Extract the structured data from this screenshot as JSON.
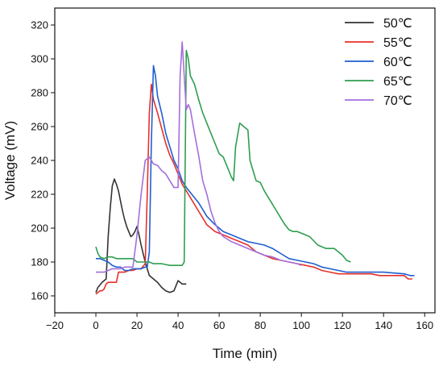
{
  "chart_data": {
    "type": "line",
    "title": "",
    "xlabel": "Time (min)",
    "ylabel": "Voltage (mV)",
    "xlim": [
      -20,
      165
    ],
    "ylim": [
      150,
      330
    ],
    "xticks": [
      -20,
      0,
      20,
      40,
      60,
      80,
      100,
      120,
      140,
      160
    ],
    "yticks": [
      160,
      180,
      200,
      220,
      240,
      260,
      280,
      300,
      320
    ],
    "xtick_labels": [
      "−20",
      "0",
      "20",
      "40",
      "60",
      "80",
      "100",
      "120",
      "140",
      "160"
    ],
    "ytick_labels": [
      "160",
      "180",
      "200",
      "220",
      "240",
      "260",
      "280",
      "300",
      "320"
    ],
    "grid": false,
    "legend_position": "top-right",
    "series": [
      {
        "name": "50℃",
        "color": "#333333",
        "points": [
          [
            0,
            162
          ],
          [
            1,
            165
          ],
          [
            3,
            168
          ],
          [
            5,
            170
          ],
          [
            6,
            195
          ],
          [
            7,
            212
          ],
          [
            8,
            225
          ],
          [
            9,
            229
          ],
          [
            10,
            226
          ],
          [
            11,
            222
          ],
          [
            12,
            216
          ],
          [
            13,
            210
          ],
          [
            14,
            205
          ],
          [
            15,
            201
          ],
          [
            16,
            198
          ],
          [
            17,
            195
          ],
          [
            18,
            196
          ],
          [
            19,
            198
          ],
          [
            20,
            201
          ],
          [
            21,
            196
          ],
          [
            22,
            190
          ],
          [
            23,
            185
          ],
          [
            24,
            180
          ],
          [
            25,
            176
          ],
          [
            26,
            172
          ],
          [
            28,
            170
          ],
          [
            30,
            168
          ],
          [
            32,
            165
          ],
          [
            34,
            163
          ],
          [
            36,
            162
          ],
          [
            38,
            163
          ],
          [
            40,
            169
          ],
          [
            42,
            167
          ],
          [
            44,
            167
          ]
        ]
      },
      {
        "name": "55℃",
        "color": "#e8302a",
        "points": [
          [
            0,
            161
          ],
          [
            1,
            162
          ],
          [
            2,
            163
          ],
          [
            3,
            163
          ],
          [
            4,
            164
          ],
          [
            5,
            167
          ],
          [
            6,
            168
          ],
          [
            8,
            168
          ],
          [
            10,
            168
          ],
          [
            11,
            174
          ],
          [
            12,
            174
          ],
          [
            14,
            174
          ],
          [
            16,
            175
          ],
          [
            18,
            175
          ],
          [
            20,
            176
          ],
          [
            22,
            176
          ],
          [
            24,
            179
          ],
          [
            25,
            220
          ],
          [
            26,
            268
          ],
          [
            27,
            285
          ],
          [
            28,
            276
          ],
          [
            30,
            268
          ],
          [
            32,
            259
          ],
          [
            34,
            250
          ],
          [
            36,
            243
          ],
          [
            38,
            238
          ],
          [
            40,
            232
          ],
          [
            42,
            226
          ],
          [
            44,
            222
          ],
          [
            46,
            218
          ],
          [
            50,
            210
          ],
          [
            54,
            202
          ],
          [
            58,
            198
          ],
          [
            62,
            196
          ],
          [
            66,
            194
          ],
          [
            70,
            192
          ],
          [
            74,
            190
          ],
          [
            78,
            186
          ],
          [
            82,
            184
          ],
          [
            86,
            182
          ],
          [
            90,
            181
          ],
          [
            94,
            180
          ],
          [
            98,
            179
          ],
          [
            102,
            178
          ],
          [
            106,
            177
          ],
          [
            110,
            175
          ],
          [
            114,
            174
          ],
          [
            118,
            173
          ],
          [
            122,
            173
          ],
          [
            126,
            173
          ],
          [
            130,
            173
          ],
          [
            134,
            173
          ],
          [
            138,
            172
          ],
          [
            142,
            172
          ],
          [
            146,
            172
          ],
          [
            150,
            172
          ],
          [
            152,
            170
          ],
          [
            154,
            170
          ]
        ]
      },
      {
        "name": "60℃",
        "color": "#1f5fd0",
        "points": [
          [
            0,
            182
          ],
          [
            2,
            182
          ],
          [
            4,
            181
          ],
          [
            6,
            180
          ],
          [
            8,
            178
          ],
          [
            10,
            177
          ],
          [
            12,
            177
          ],
          [
            14,
            175
          ],
          [
            16,
            175
          ],
          [
            18,
            176
          ],
          [
            20,
            176
          ],
          [
            22,
            176
          ],
          [
            24,
            177
          ],
          [
            25,
            177
          ],
          [
            26,
            186
          ],
          [
            27,
            250
          ],
          [
            28,
            296
          ],
          [
            29,
            290
          ],
          [
            30,
            278
          ],
          [
            32,
            268
          ],
          [
            34,
            256
          ],
          [
            36,
            248
          ],
          [
            38,
            240
          ],
          [
            40,
            235
          ],
          [
            42,
            228
          ],
          [
            44,
            224
          ],
          [
            46,
            221
          ],
          [
            48,
            218
          ],
          [
            50,
            215
          ],
          [
            54,
            207
          ],
          [
            58,
            202
          ],
          [
            62,
            198
          ],
          [
            66,
            196
          ],
          [
            70,
            194
          ],
          [
            74,
            192
          ],
          [
            78,
            191
          ],
          [
            82,
            190
          ],
          [
            86,
            188
          ],
          [
            90,
            185
          ],
          [
            94,
            182
          ],
          [
            98,
            181
          ],
          [
            102,
            180
          ],
          [
            106,
            179
          ],
          [
            110,
            177
          ],
          [
            114,
            176
          ],
          [
            118,
            175
          ],
          [
            122,
            174
          ],
          [
            130,
            174
          ],
          [
            140,
            174
          ],
          [
            150,
            173
          ],
          [
            153,
            172
          ],
          [
            155,
            172
          ]
        ]
      },
      {
        "name": "65℃",
        "color": "#2e9e4f",
        "points": [
          [
            0,
            189
          ],
          [
            1,
            185
          ],
          [
            2,
            183
          ],
          [
            4,
            182
          ],
          [
            6,
            183
          ],
          [
            8,
            183
          ],
          [
            10,
            182
          ],
          [
            14,
            182
          ],
          [
            18,
            182
          ],
          [
            20,
            180
          ],
          [
            22,
            180
          ],
          [
            24,
            180
          ],
          [
            26,
            180
          ],
          [
            28,
            179
          ],
          [
            32,
            179
          ],
          [
            36,
            178
          ],
          [
            40,
            178
          ],
          [
            42,
            178
          ],
          [
            43,
            180
          ],
          [
            44,
            305
          ],
          [
            45,
            300
          ],
          [
            46,
            290
          ],
          [
            48,
            285
          ],
          [
            50,
            276
          ],
          [
            52,
            268
          ],
          [
            54,
            262
          ],
          [
            56,
            256
          ],
          [
            58,
            250
          ],
          [
            60,
            244
          ],
          [
            62,
            242
          ],
          [
            64,
            236
          ],
          [
            66,
            230
          ],
          [
            67,
            228
          ],
          [
            68,
            248
          ],
          [
            70,
            262
          ],
          [
            72,
            260
          ],
          [
            74,
            258
          ],
          [
            75,
            240
          ],
          [
            76,
            236
          ],
          [
            78,
            228
          ],
          [
            80,
            227
          ],
          [
            82,
            222
          ],
          [
            84,
            218
          ],
          [
            86,
            214
          ],
          [
            88,
            210
          ],
          [
            90,
            206
          ],
          [
            92,
            202
          ],
          [
            94,
            199
          ],
          [
            96,
            198
          ],
          [
            98,
            198
          ],
          [
            100,
            197
          ],
          [
            104,
            195
          ],
          [
            108,
            190
          ],
          [
            112,
            188
          ],
          [
            116,
            188
          ],
          [
            118,
            186
          ],
          [
            120,
            184
          ],
          [
            122,
            181
          ],
          [
            124,
            180
          ]
        ]
      },
      {
        "name": "70℃",
        "color": "#a36fdb",
        "points": [
          [
            0,
            174
          ],
          [
            2,
            174
          ],
          [
            4,
            174
          ],
          [
            6,
            175
          ],
          [
            8,
            176
          ],
          [
            10,
            176
          ],
          [
            12,
            176
          ],
          [
            14,
            177
          ],
          [
            16,
            177
          ],
          [
            18,
            177
          ],
          [
            20,
            196
          ],
          [
            22,
            220
          ],
          [
            24,
            240
          ],
          [
            26,
            242
          ],
          [
            28,
            238
          ],
          [
            30,
            237
          ],
          [
            32,
            234
          ],
          [
            34,
            232
          ],
          [
            36,
            228
          ],
          [
            38,
            224
          ],
          [
            40,
            224
          ],
          [
            41,
            290
          ],
          [
            42,
            310
          ],
          [
            43,
            290
          ],
          [
            44,
            270
          ],
          [
            45,
            273
          ],
          [
            46,
            270
          ],
          [
            48,
            256
          ],
          [
            50,
            243
          ],
          [
            52,
            228
          ],
          [
            54,
            220
          ],
          [
            56,
            210
          ],
          [
            58,
            203
          ],
          [
            60,
            198
          ],
          [
            62,
            195
          ],
          [
            66,
            192
          ],
          [
            70,
            190
          ],
          [
            74,
            188
          ],
          [
            78,
            186
          ],
          [
            82,
            184
          ],
          [
            86,
            183
          ],
          [
            90,
            181
          ],
          [
            94,
            180
          ],
          [
            98,
            179
          ],
          [
            100,
            178
          ]
        ]
      }
    ]
  }
}
